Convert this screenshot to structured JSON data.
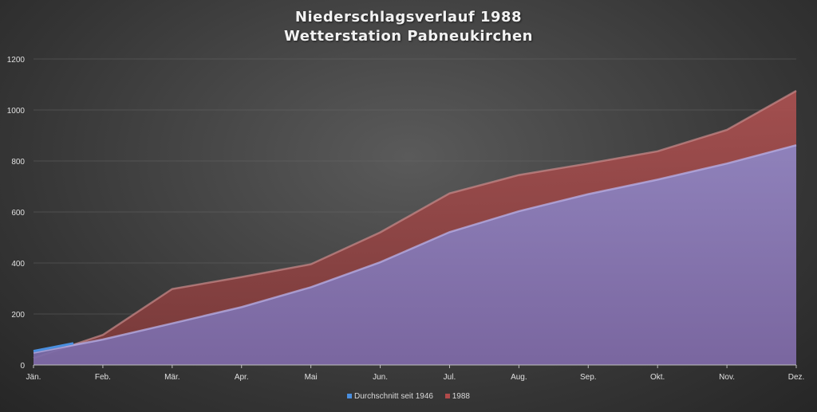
{
  "chart_data": {
    "type": "area",
    "title": "Niederschlagsverlauf 1988",
    "subtitle": "Wetterstation Pabneukirchen",
    "categories": [
      "Jän.",
      "Feb.",
      "Mär.",
      "Apr.",
      "Mai",
      "Jun.",
      "Jul.",
      "Aug.",
      "Sep.",
      "Okt.",
      "Nov.",
      "Dez."
    ],
    "series": [
      {
        "name": "Durchschnitt seit 1946",
        "color": "#8f84c8",
        "values": [
          48,
          100,
          163,
          227,
          305,
          403,
          521,
          603,
          670,
          727,
          790,
          862
        ]
      },
      {
        "name": "1988",
        "color": "#9a4b4b",
        "values": [
          27,
          118,
          298,
          345,
          395,
          520,
          673,
          745,
          790,
          838,
          922,
          1075
        ]
      }
    ],
    "yticks": [
      0,
      200,
      400,
      600,
      800,
      1000,
      1200
    ],
    "ylim": [
      0,
      1200
    ],
    "grid": true,
    "legend": "bottom"
  }
}
